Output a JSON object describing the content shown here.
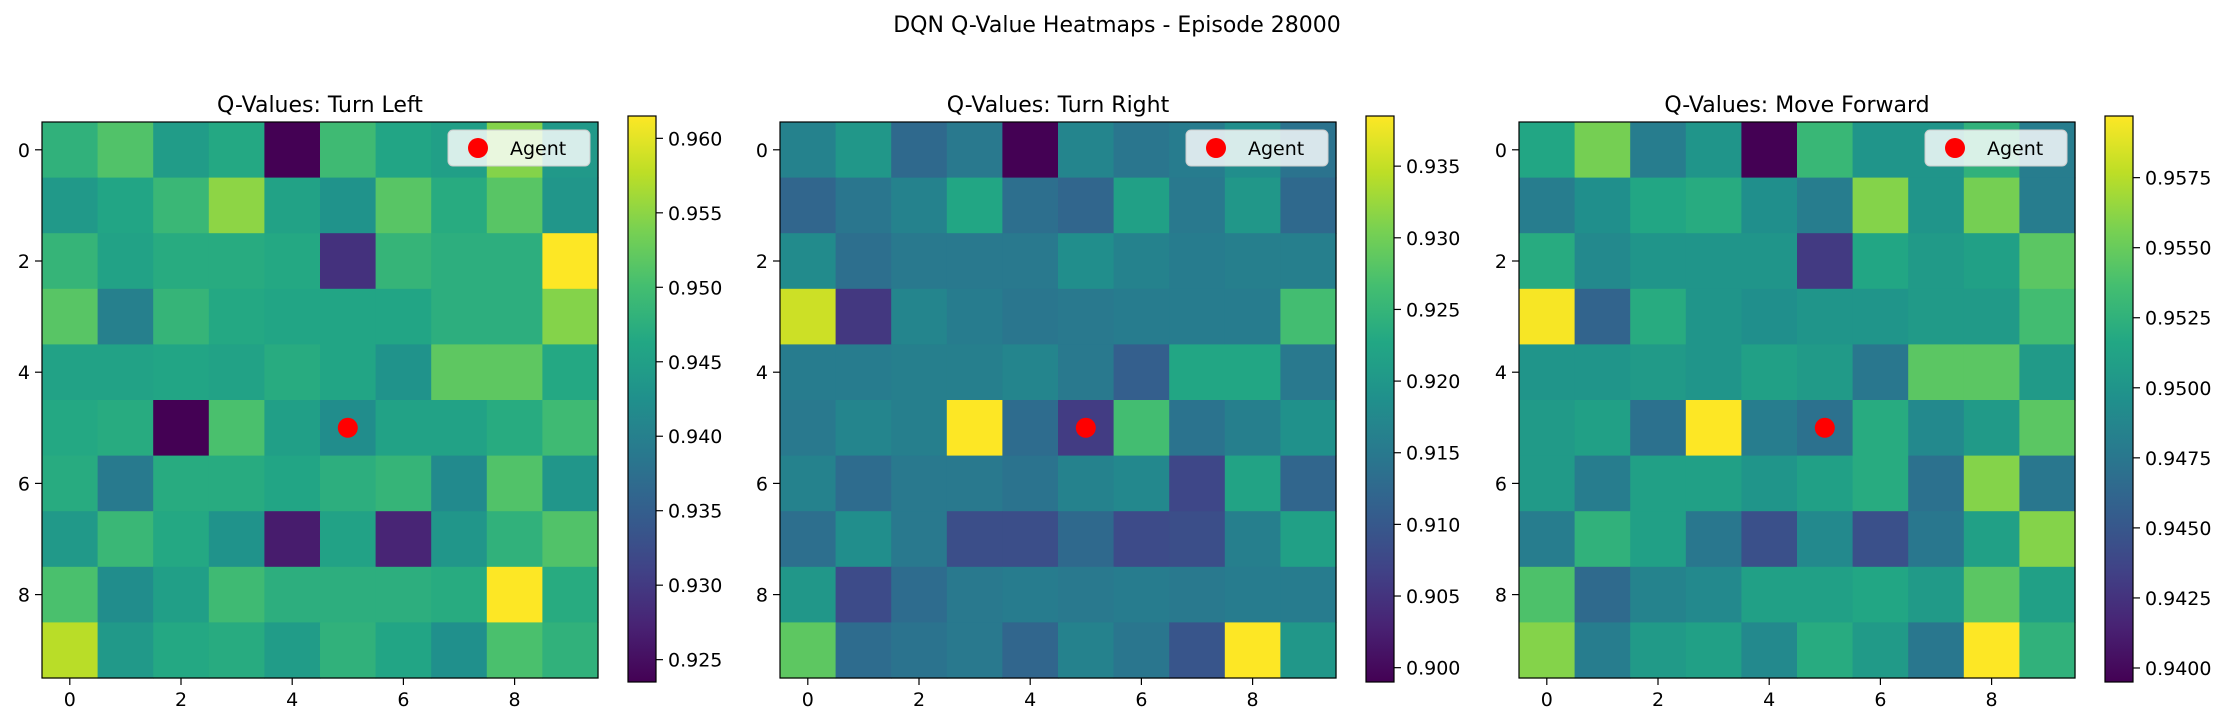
{
  "figure": {
    "title": "DQN Q-Value Heatmaps - Episode 28000"
  },
  "chart_data": [
    {
      "type": "heatmap",
      "title": "Q-Values: Turn Left",
      "x_ticks": [
        0,
        2,
        4,
        6,
        8
      ],
      "y_ticks": [
        0,
        2,
        4,
        6,
        8
      ],
      "colorbar_ticks": [
        "0.925",
        "0.930",
        "0.935",
        "0.940",
        "0.945",
        "0.950",
        "0.955",
        "0.960"
      ],
      "vmin": 0.9235,
      "vmax": 0.9615,
      "agent": {
        "x": 5,
        "y": 5
      },
      "legend_label": "Agent",
      "grid": [
        [
          0.948,
          0.951,
          0.9445,
          0.9465,
          0.9235,
          0.9495,
          0.946,
          0.945,
          0.9545,
          0.944
        ],
        [
          0.944,
          0.946,
          0.949,
          0.955,
          0.9455,
          0.943,
          0.9515,
          0.947,
          0.9515,
          0.9435
        ],
        [
          0.9485,
          0.9455,
          0.947,
          0.947,
          0.9465,
          0.929,
          0.9485,
          0.9475,
          0.9475,
          0.9615
        ],
        [
          0.9515,
          0.94,
          0.9485,
          0.9465,
          0.946,
          0.946,
          0.946,
          0.9475,
          0.9475,
          0.9545
        ],
        [
          0.9455,
          0.9455,
          0.946,
          0.9455,
          0.947,
          0.946,
          0.943,
          0.952,
          0.952,
          0.9465
        ],
        [
          0.9465,
          0.947,
          0.9235,
          0.9505,
          0.945,
          0.942,
          0.9455,
          0.9455,
          0.947,
          0.9495
        ],
        [
          0.947,
          0.939,
          0.947,
          0.947,
          0.946,
          0.9475,
          0.9485,
          0.9415,
          0.951,
          0.9435
        ],
        [
          0.944,
          0.949,
          0.9465,
          0.943,
          0.9265,
          0.9455,
          0.9275,
          0.9435,
          0.948,
          0.951
        ],
        [
          0.9505,
          0.942,
          0.945,
          0.9495,
          0.9475,
          0.9475,
          0.9475,
          0.947,
          0.9615,
          0.947
        ],
        [
          0.9575,
          0.944,
          0.9465,
          0.947,
          0.9445,
          0.948,
          0.946,
          0.9425,
          0.9505,
          0.948
        ]
      ]
    },
    {
      "type": "heatmap",
      "title": "Q-Values: Turn Right",
      "x_ticks": [
        0,
        2,
        4,
        6,
        8
      ],
      "y_ticks": [
        0,
        2,
        4,
        6,
        8
      ],
      "colorbar_ticks": [
        "0.900",
        "0.905",
        "0.910",
        "0.915",
        "0.920",
        "0.925",
        "0.930",
        "0.935"
      ],
      "vmin": 0.899,
      "vmax": 0.9385,
      "agent": {
        "x": 5,
        "y": 5
      },
      "legend_label": "Agent",
      "grid": [
        [
          0.9165,
          0.92,
          0.9125,
          0.915,
          0.899,
          0.917,
          0.9145,
          0.9155,
          0.9185,
          0.914
        ],
        [
          0.912,
          0.9145,
          0.9165,
          0.9225,
          0.9135,
          0.912,
          0.9215,
          0.915,
          0.92,
          0.9125
        ],
        [
          0.918,
          0.9135,
          0.915,
          0.915,
          0.915,
          0.9185,
          0.9165,
          0.9155,
          0.916,
          0.916
        ],
        [
          0.9355,
          0.9055,
          0.917,
          0.9155,
          0.9145,
          0.915,
          0.9155,
          0.9155,
          0.9155,
          0.9265
        ],
        [
          0.9155,
          0.9155,
          0.916,
          0.916,
          0.917,
          0.915,
          0.911,
          0.9225,
          0.9225,
          0.915
        ],
        [
          0.915,
          0.917,
          0.916,
          0.9385,
          0.913,
          0.906,
          0.9265,
          0.914,
          0.916,
          0.919
        ],
        [
          0.9165,
          0.913,
          0.915,
          0.915,
          0.914,
          0.9165,
          0.9175,
          0.9075,
          0.922,
          0.912
        ],
        [
          0.9135,
          0.9185,
          0.915,
          0.9085,
          0.9085,
          0.9125,
          0.908,
          0.9085,
          0.916,
          0.9215
        ],
        [
          0.92,
          0.908,
          0.913,
          0.915,
          0.9155,
          0.915,
          0.9155,
          0.915,
          0.9155,
          0.9155
        ],
        [
          0.9285,
          0.913,
          0.914,
          0.915,
          0.912,
          0.9165,
          0.9145,
          0.9095,
          0.9385,
          0.92
        ]
      ]
    },
    {
      "type": "heatmap",
      "title": "Q-Values: Move Forward",
      "x_ticks": [
        0,
        2,
        4,
        6,
        8
      ],
      "y_ticks": [
        0,
        2,
        4,
        6,
        8
      ],
      "colorbar_ticks": [
        "0.9400",
        "0.9425",
        "0.9450",
        "0.9475",
        "0.9500",
        "0.9525",
        "0.9550",
        "0.9575"
      ],
      "vmin": 0.9395,
      "vmax": 0.9597,
      "agent": {
        "x": 5,
        "y": 5
      },
      "legend_label": "Agent",
      "grid": [
        [
          0.9515,
          0.9555,
          0.948,
          0.95,
          0.9395,
          0.953,
          0.95,
          0.95,
          0.9525,
          0.948
        ],
        [
          0.948,
          0.9495,
          0.9515,
          0.952,
          0.9495,
          0.948,
          0.956,
          0.95,
          0.9555,
          0.948
        ],
        [
          0.952,
          0.949,
          0.95,
          0.95,
          0.95,
          0.943,
          0.9515,
          0.9505,
          0.951,
          0.9545
        ],
        [
          0.9595,
          0.946,
          0.952,
          0.95,
          0.9495,
          0.95,
          0.95,
          0.9505,
          0.9505,
          0.9535
        ],
        [
          0.95,
          0.95,
          0.9505,
          0.95,
          0.951,
          0.9505,
          0.9475,
          0.9545,
          0.9545,
          0.9505
        ],
        [
          0.9505,
          0.951,
          0.947,
          0.9597,
          0.948,
          0.947,
          0.952,
          0.949,
          0.9505,
          0.9545
        ],
        [
          0.9505,
          0.948,
          0.951,
          0.951,
          0.95,
          0.951,
          0.952,
          0.947,
          0.956,
          0.9475
        ],
        [
          0.948,
          0.9525,
          0.951,
          0.9475,
          0.9445,
          0.949,
          0.9445,
          0.9475,
          0.951,
          0.956
        ],
        [
          0.954,
          0.9465,
          0.9485,
          0.949,
          0.951,
          0.951,
          0.9515,
          0.9505,
          0.9545,
          0.951
        ],
        [
          0.956,
          0.948,
          0.9505,
          0.951,
          0.949,
          0.952,
          0.9505,
          0.9475,
          0.9597,
          0.9525
        ]
      ]
    }
  ]
}
